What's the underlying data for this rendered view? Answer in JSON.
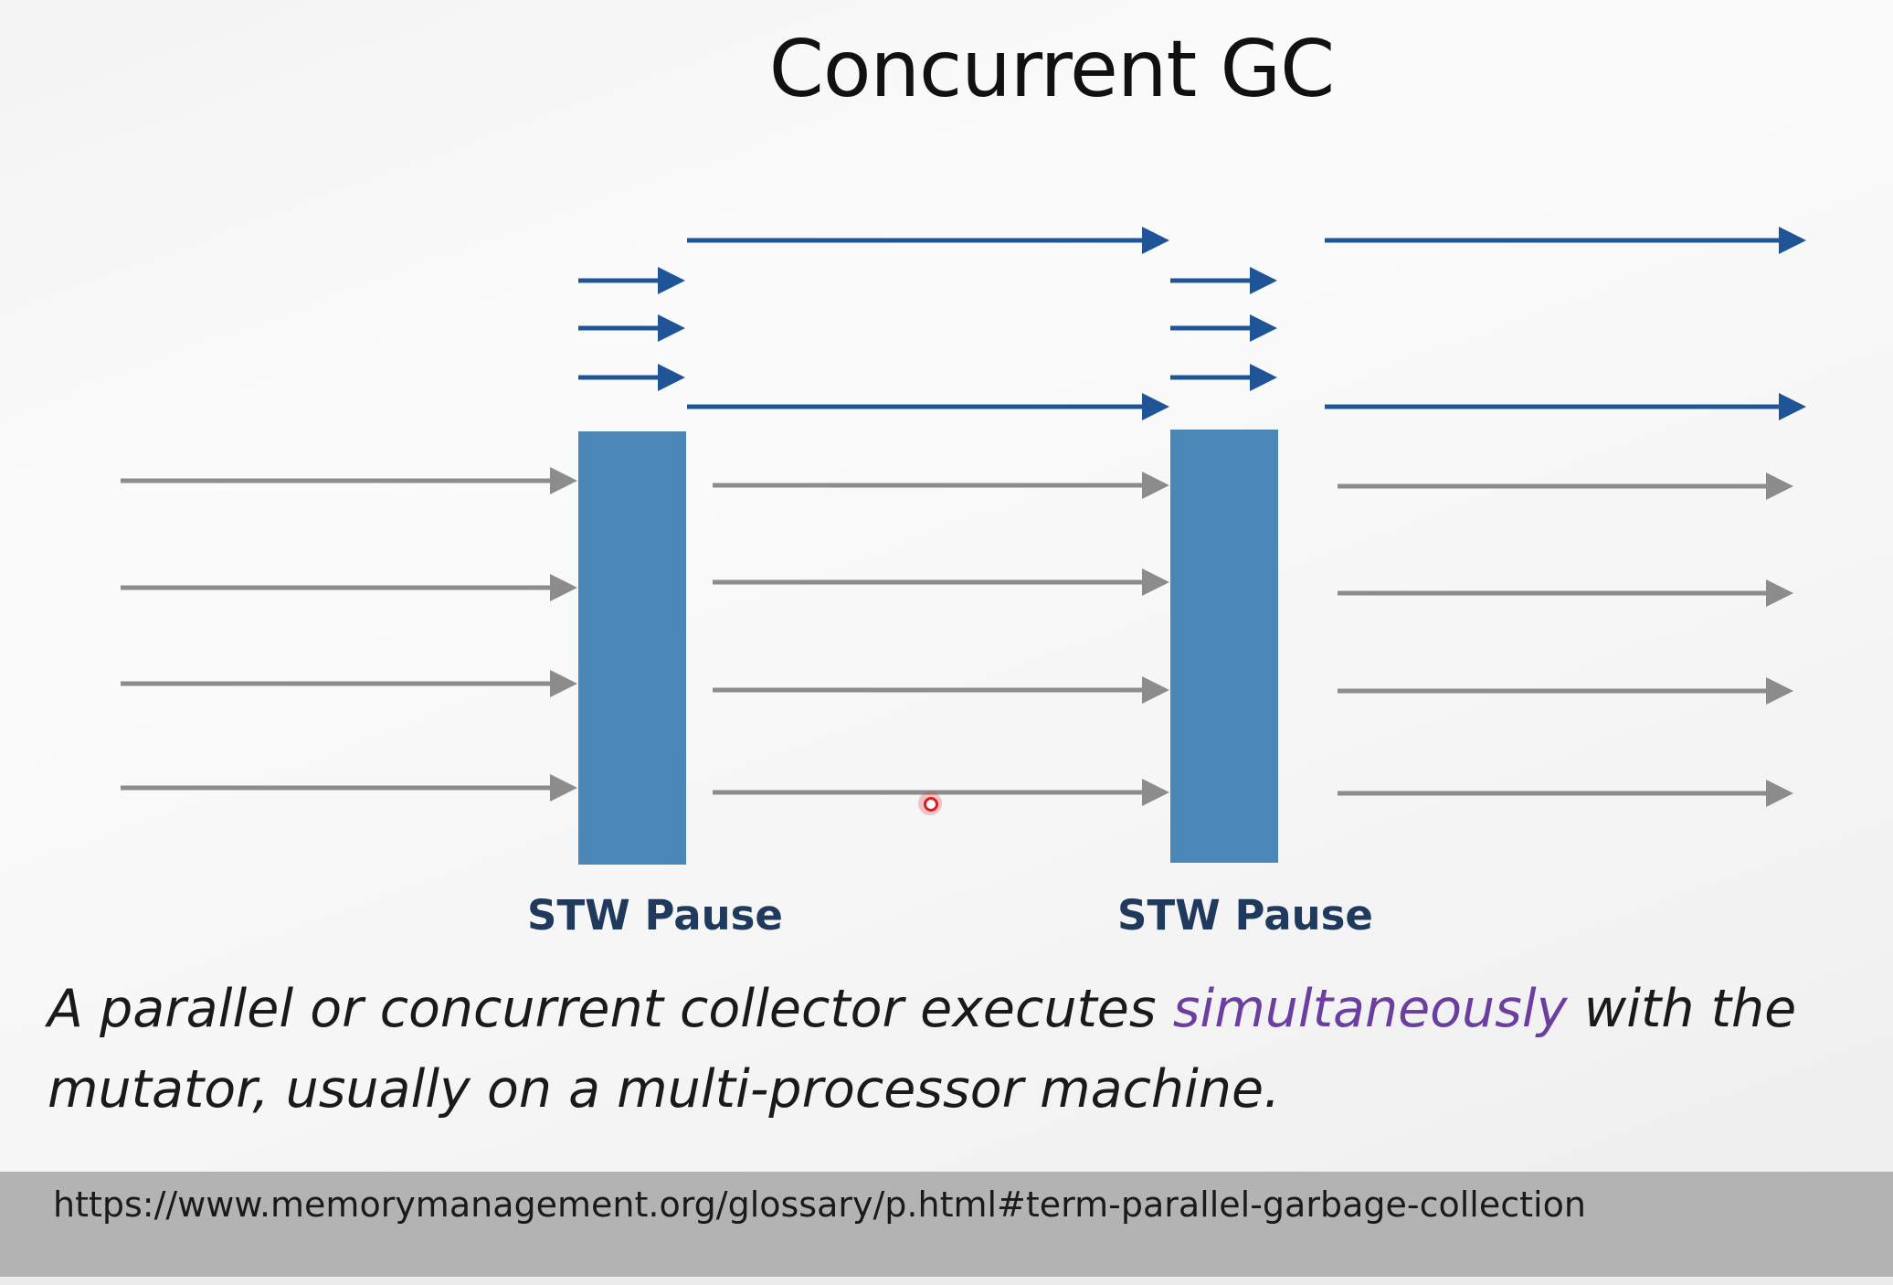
{
  "slide": {
    "title": "Concurrent GC",
    "pause_labels": [
      "STW Pause",
      "STW Pause"
    ],
    "caption": {
      "before": "A parallel or concurrent collector executes ",
      "highlight": "simultaneously",
      "after": " with the mutator, usually on a multi-processor machine."
    },
    "footer_url": "https://www.memorymanagement.org/glossary/p.html#term-parallel-garbage-collection"
  },
  "colors": {
    "gc_thread": "#1f5596",
    "mutator_thread": "#8c8c8c",
    "pause_block": "#4a86b6",
    "highlight": "#6b3fa0",
    "label": "#1f3a5c"
  }
}
